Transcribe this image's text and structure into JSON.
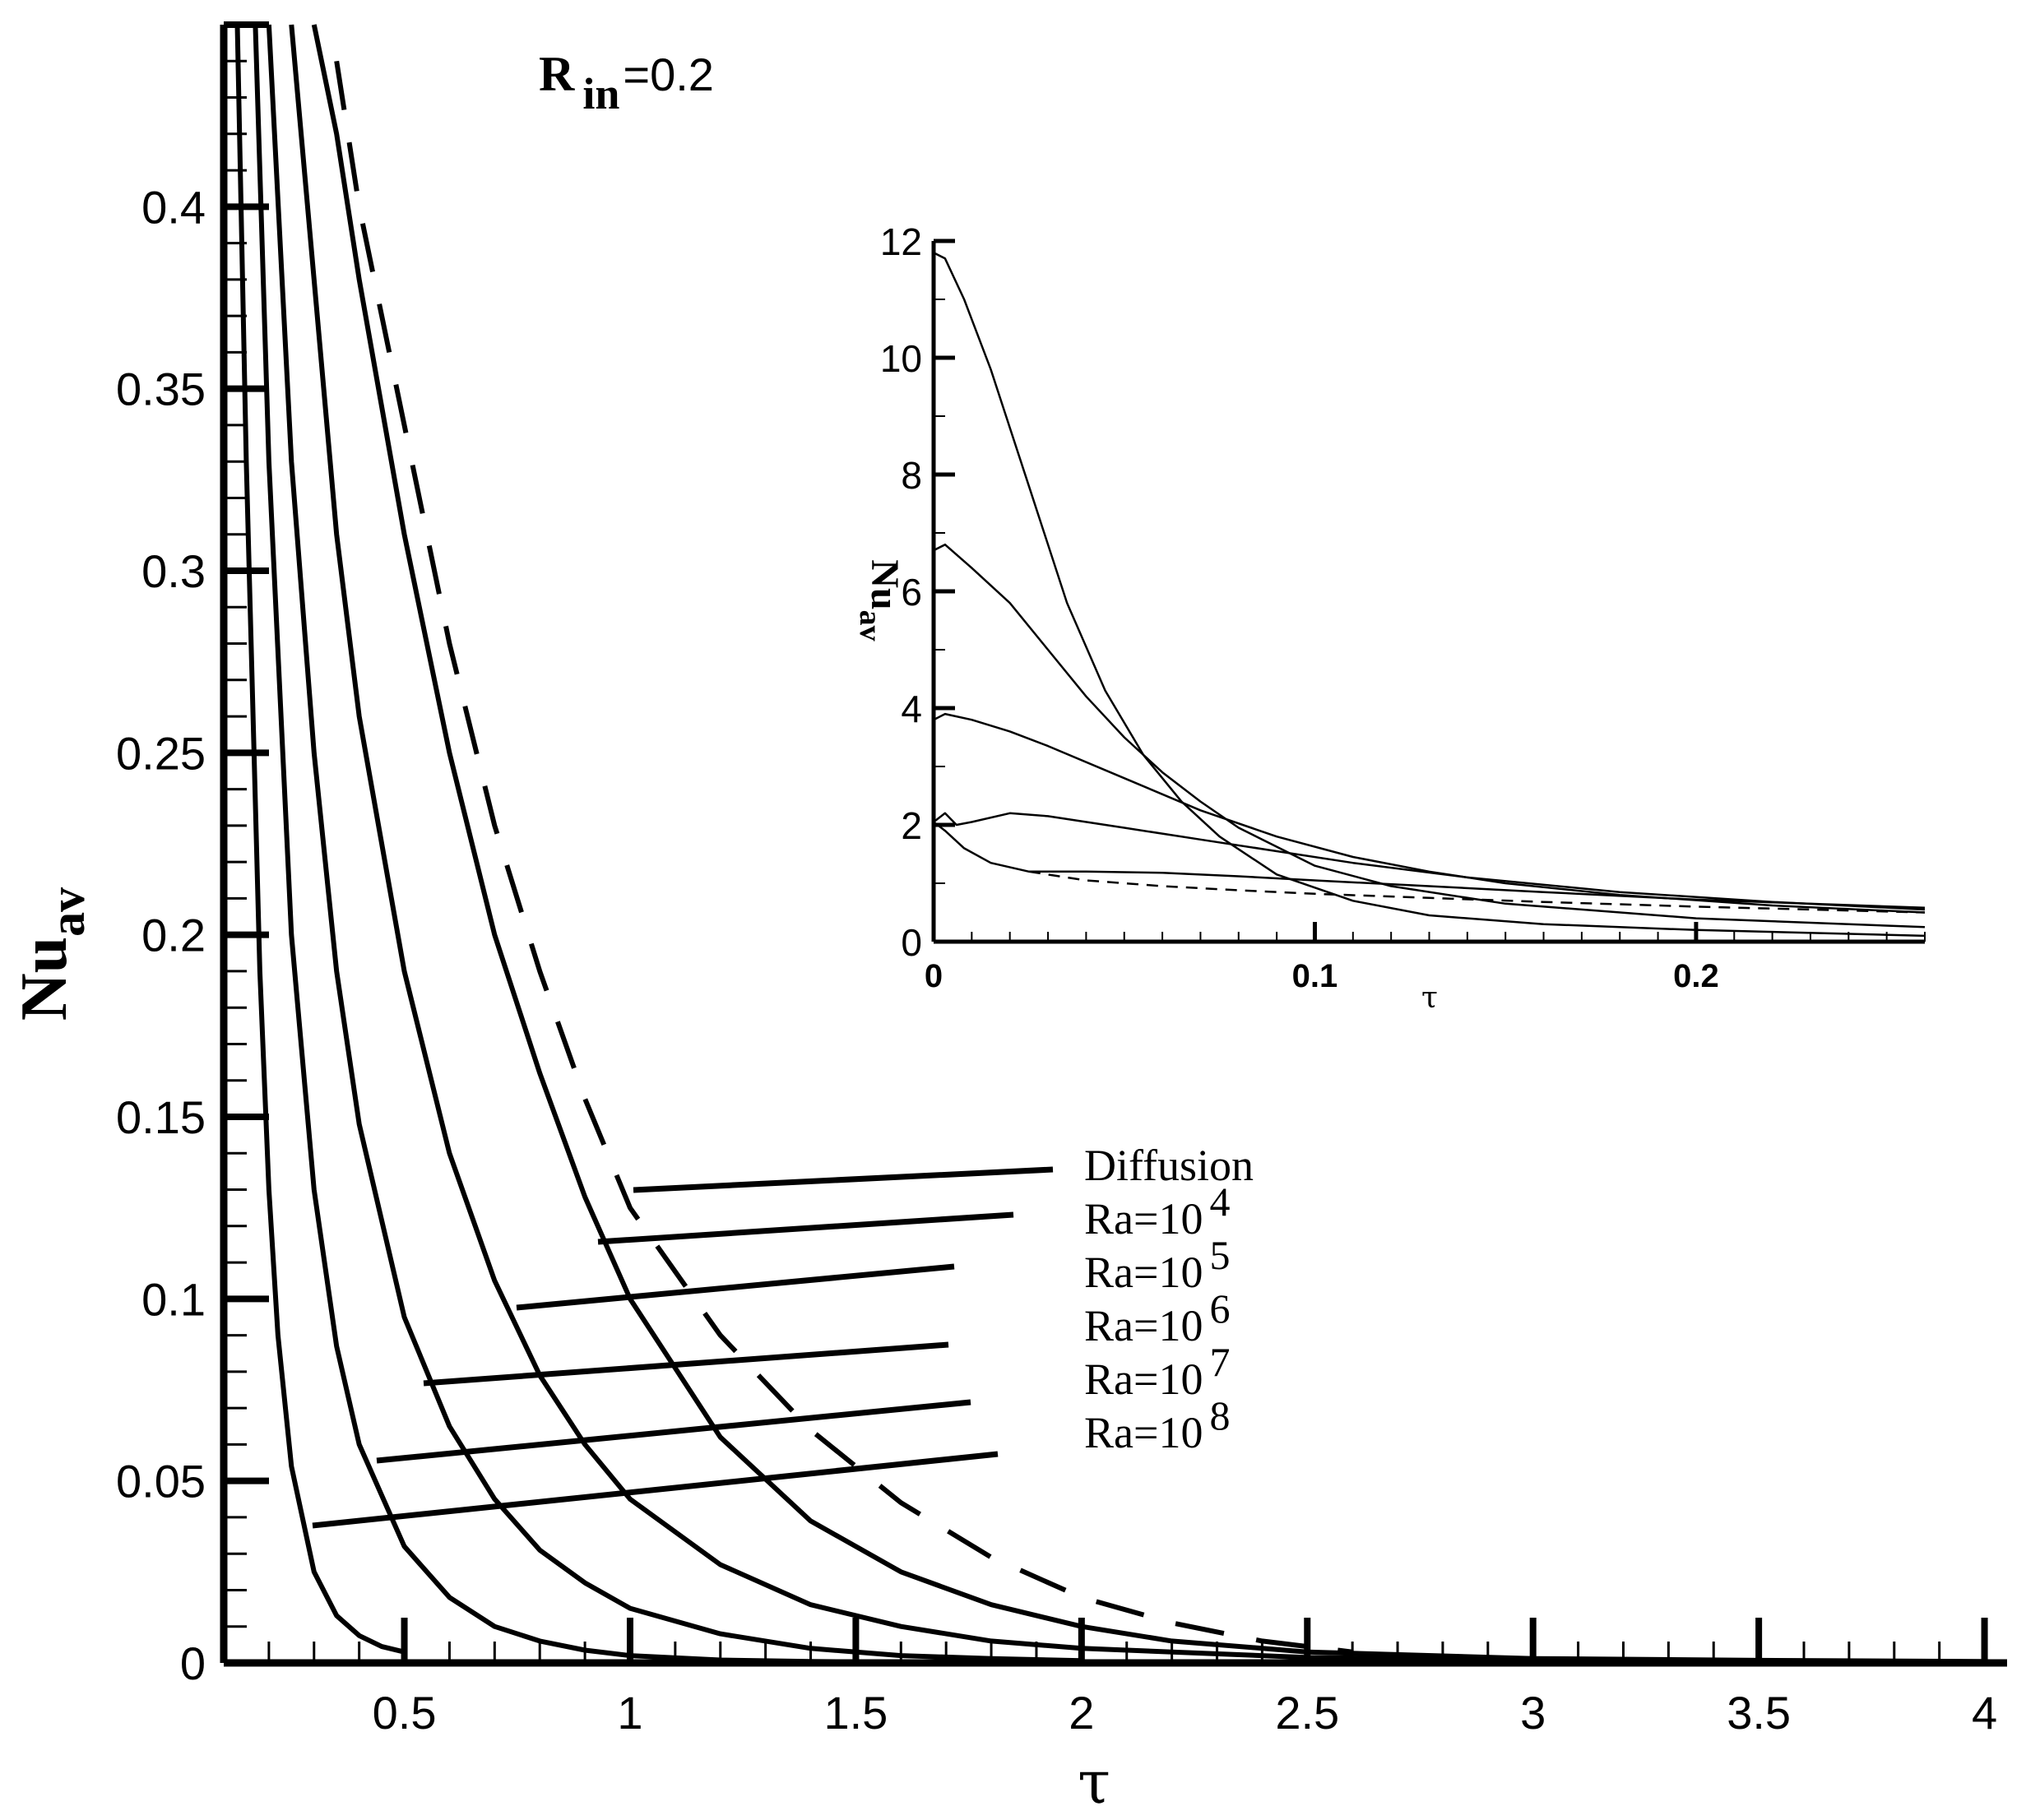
{
  "chart_data": [
    {
      "type": "line",
      "title": "",
      "annotation": {
        "symbol": "R",
        "subscript": "in",
        "value": "=0.2"
      },
      "xlabel": "τ",
      "ylabel": {
        "base": "Nu",
        "sub": "av"
      },
      "xlim": [
        0.1,
        4.05
      ],
      "ylim": [
        0,
        0.45
      ],
      "xticks": [
        {
          "value": 0.5,
          "label": "0.5"
        },
        {
          "value": 1,
          "label": "1"
        },
        {
          "value": 1.5,
          "label": "1.5"
        },
        {
          "value": 2,
          "label": "2"
        },
        {
          "value": 2.5,
          "label": "2.5"
        },
        {
          "value": 3,
          "label": "3"
        },
        {
          "value": 3.5,
          "label": "3.5"
        },
        {
          "value": 4,
          "label": "4"
        }
      ],
      "yticks": [
        {
          "value": 0,
          "label": "0"
        },
        {
          "value": 0.05,
          "label": "0.05"
        },
        {
          "value": 0.1,
          "label": "0.1"
        },
        {
          "value": 0.15,
          "label": "0.15"
        },
        {
          "value": 0.2,
          "label": "0.2"
        },
        {
          "value": 0.25,
          "label": "0.25"
        },
        {
          "value": 0.3,
          "label": "0.3"
        },
        {
          "value": 0.35,
          "label": "0.35"
        },
        {
          "value": 0.4,
          "label": "0.4"
        }
      ],
      "legend": [
        {
          "base": "Diffusion",
          "sup": ""
        },
        {
          "base": "Ra=10",
          "sup": "4"
        },
        {
          "base": "Ra=10",
          "sup": "5"
        },
        {
          "base": "Ra=10",
          "sup": "6"
        },
        {
          "base": "Ra=10",
          "sup": "7"
        },
        {
          "base": "Ra=10",
          "sup": "8"
        }
      ],
      "series": [
        {
          "name": "Diffusion",
          "style": "dashed",
          "x": [
            0.35,
            0.4,
            0.5,
            0.6,
            0.7,
            0.8,
            0.9,
            1.0,
            1.2,
            1.4,
            1.6,
            1.8,
            2.0,
            2.2,
            2.4,
            2.6
          ],
          "y": [
            0.44,
            0.4,
            0.34,
            0.28,
            0.23,
            0.19,
            0.155,
            0.125,
            0.09,
            0.064,
            0.044,
            0.029,
            0.018,
            0.011,
            0.006,
            0.003
          ]
        },
        {
          "name": "Ra=10^4",
          "style": "solid",
          "x": [
            0.3,
            0.35,
            0.4,
            0.5,
            0.6,
            0.7,
            0.8,
            0.9,
            1.0,
            1.2,
            1.4,
            1.6,
            1.8,
            2.0,
            2.2,
            2.5,
            3.0,
            3.5,
            4.0
          ],
          "y": [
            0.45,
            0.42,
            0.38,
            0.31,
            0.25,
            0.2,
            0.162,
            0.128,
            0.1,
            0.062,
            0.039,
            0.025,
            0.016,
            0.01,
            0.006,
            0.003,
            0.0012,
            0.0007,
            0.0004
          ]
        },
        {
          "name": "Ra=10^5",
          "style": "solid",
          "x": [
            0.25,
            0.3,
            0.35,
            0.4,
            0.5,
            0.6,
            0.7,
            0.8,
            0.9,
            1.0,
            1.2,
            1.4,
            1.6,
            1.8,
            2.0,
            2.5,
            3.0,
            4.0
          ],
          "y": [
            0.45,
            0.38,
            0.31,
            0.26,
            0.19,
            0.14,
            0.105,
            0.079,
            0.06,
            0.045,
            0.027,
            0.016,
            0.01,
            0.006,
            0.004,
            0.0015,
            0.0008,
            0.0003
          ]
        },
        {
          "name": "Ra=10^6",
          "style": "solid",
          "x": [
            0.2,
            0.25,
            0.3,
            0.35,
            0.4,
            0.5,
            0.6,
            0.7,
            0.8,
            0.9,
            1.0,
            1.2,
            1.4,
            1.6,
            1.8,
            2.0
          ],
          "y": [
            0.45,
            0.33,
            0.25,
            0.19,
            0.148,
            0.095,
            0.065,
            0.045,
            0.031,
            0.022,
            0.015,
            0.008,
            0.004,
            0.002,
            0.0012,
            0.0006
          ]
        },
        {
          "name": "Ra=10^7",
          "style": "solid",
          "x": [
            0.17,
            0.2,
            0.25,
            0.3,
            0.35,
            0.4,
            0.5,
            0.6,
            0.7,
            0.8,
            0.9,
            1.0,
            1.2,
            1.4,
            1.6
          ],
          "y": [
            0.45,
            0.33,
            0.2,
            0.13,
            0.087,
            0.06,
            0.032,
            0.018,
            0.01,
            0.006,
            0.0035,
            0.002,
            0.0008,
            0.0004,
            0.0002
          ]
        },
        {
          "name": "Ra=10^8",
          "style": "solid",
          "x": [
            0.13,
            0.15,
            0.18,
            0.2,
            0.22,
            0.25,
            0.3,
            0.35,
            0.4,
            0.45,
            0.5
          ],
          "y": [
            0.45,
            0.33,
            0.19,
            0.13,
            0.09,
            0.054,
            0.025,
            0.013,
            0.0075,
            0.0045,
            0.003
          ]
        }
      ]
    },
    {
      "type": "line",
      "title": "",
      "xlabel": "τ",
      "ylabel": {
        "base": "Nu",
        "sub": "av"
      },
      "xlim": [
        0,
        0.26
      ],
      "ylim": [
        0,
        12
      ],
      "xticks": [
        {
          "value": 0,
          "label": "0"
        },
        {
          "value": 0.1,
          "label": "0.1"
        },
        {
          "value": 0.2,
          "label": "0.2"
        }
      ],
      "yticks": [
        {
          "value": 0,
          "label": "0"
        },
        {
          "value": 2,
          "label": "2"
        },
        {
          "value": 4,
          "label": "4"
        },
        {
          "value": 6,
          "label": "6"
        },
        {
          "value": 8,
          "label": "8"
        },
        {
          "value": 10,
          "label": "10"
        },
        {
          "value": 12,
          "label": "12"
        }
      ],
      "series": [
        {
          "name": "Ra=10^8",
          "style": "solid",
          "x": [
            0,
            0.003,
            0.008,
            0.015,
            0.025,
            0.035,
            0.045,
            0.055,
            0.065,
            0.075,
            0.09,
            0.11,
            0.13,
            0.16,
            0.2,
            0.26
          ],
          "y": [
            11.8,
            11.7,
            11.0,
            9.8,
            7.8,
            5.8,
            4.3,
            3.2,
            2.4,
            1.8,
            1.15,
            0.7,
            0.45,
            0.3,
            0.2,
            0.1
          ]
        },
        {
          "name": "Ra=10^7",
          "style": "solid",
          "x": [
            0,
            0.003,
            0.01,
            0.02,
            0.03,
            0.04,
            0.05,
            0.06,
            0.07,
            0.08,
            0.1,
            0.12,
            0.15,
            0.2,
            0.26
          ],
          "y": [
            6.7,
            6.8,
            6.4,
            5.8,
            5.0,
            4.2,
            3.5,
            2.9,
            2.4,
            1.95,
            1.3,
            0.95,
            0.65,
            0.4,
            0.25
          ]
        },
        {
          "name": "Ra=10^6",
          "style": "solid",
          "x": [
            0,
            0.003,
            0.01,
            0.02,
            0.03,
            0.05,
            0.07,
            0.09,
            0.11,
            0.13,
            0.15,
            0.18,
            0.22,
            0.26
          ],
          "y": [
            3.8,
            3.9,
            3.8,
            3.6,
            3.35,
            2.8,
            2.25,
            1.8,
            1.45,
            1.2,
            1.0,
            0.8,
            0.62,
            0.5
          ]
        },
        {
          "name": "Ra=10^5",
          "style": "solid",
          "x": [
            0,
            0.003,
            0.006,
            0.01,
            0.02,
            0.03,
            0.05,
            0.07,
            0.09,
            0.11,
            0.14,
            0.18,
            0.22,
            0.26
          ],
          "y": [
            2.05,
            2.2,
            2.0,
            2.05,
            2.2,
            2.15,
            1.95,
            1.75,
            1.55,
            1.35,
            1.1,
            0.85,
            0.68,
            0.55
          ]
        },
        {
          "name": "Ra=10^4",
          "style": "solid",
          "x": [
            0,
            0.003,
            0.008,
            0.015,
            0.025,
            0.04,
            0.06,
            0.08,
            0.1,
            0.13,
            0.16,
            0.2,
            0.26
          ],
          "y": [
            2.05,
            1.9,
            1.6,
            1.35,
            1.2,
            1.2,
            1.18,
            1.12,
            1.05,
            0.95,
            0.85,
            0.72,
            0.58
          ]
        },
        {
          "name": "Diffusion",
          "style": "dashed",
          "x": [
            0.025,
            0.04,
            0.06,
            0.08,
            0.1,
            0.13,
            0.16,
            0.2,
            0.26
          ],
          "y": [
            1.2,
            1.05,
            0.95,
            0.88,
            0.82,
            0.75,
            0.68,
            0.6,
            0.5
          ]
        }
      ]
    }
  ]
}
